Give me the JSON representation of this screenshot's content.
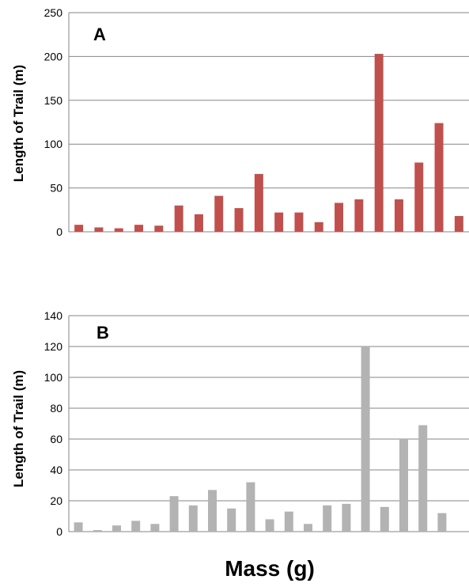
{
  "chart_data": [
    {
      "type": "bar",
      "panel_label": "A",
      "ylabel": "Length of Trail (m)",
      "xlabel": "",
      "ylim": [
        0,
        250
      ],
      "y_ticks": [
        "0",
        "50",
        "100",
        "150",
        "200",
        "250"
      ],
      "grid": true,
      "bar_color": "#c0504d",
      "values": [
        8,
        5,
        4,
        8,
        7,
        30,
        20,
        41,
        27,
        66,
        22,
        22,
        11,
        33,
        37,
        203,
        37,
        79,
        124,
        18
      ]
    },
    {
      "type": "bar",
      "panel_label": "B",
      "ylabel": "Length of Trail (m)",
      "xlabel": "",
      "ylim": [
        0,
        140
      ],
      "y_ticks": [
        "0",
        "20",
        "40",
        "60",
        "80",
        "100",
        "120",
        "140"
      ],
      "grid": true,
      "bar_color": "#b3b3b3",
      "values": [
        6,
        1,
        4,
        7,
        5,
        23,
        17,
        27,
        15,
        32,
        8,
        13,
        5,
        17,
        18,
        120,
        16,
        60,
        69,
        12
      ]
    }
  ],
  "shared_xlabel": "Mass (g)"
}
